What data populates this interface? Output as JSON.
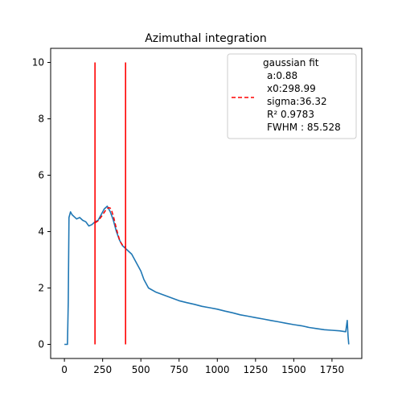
{
  "chart_data": {
    "type": "line",
    "title": "Azimuthal integration",
    "xlabel": "",
    "ylabel": "",
    "xlim": [
      -90,
      1945
    ],
    "ylim": [
      -0.5,
      10.5
    ],
    "xticks": [
      0,
      250,
      500,
      750,
      1000,
      1250,
      1500,
      1750
    ],
    "yticks": [
      0,
      2,
      4,
      6,
      8,
      10
    ],
    "grid": false,
    "legend_position": "top-right",
    "legend": {
      "title": "gaussian fit",
      "lines": [
        "a:0.88",
        "x0:298.99",
        "sigma:36.32",
        "R² 0.9783",
        "FWHM : 85.528"
      ]
    },
    "colors": {
      "data": "#1f77b4",
      "fit": "#ff0000",
      "markers": "#ff0000"
    },
    "series": [
      {
        "name": "",
        "style": "solid",
        "x": [
          0,
          20,
          25,
          30,
          40,
          50,
          60,
          80,
          100,
          120,
          140,
          160,
          180,
          200,
          220,
          240,
          260,
          280,
          300,
          320,
          340,
          360,
          380,
          400,
          420,
          440,
          460,
          480,
          500,
          520,
          550,
          600,
          650,
          700,
          750,
          800,
          850,
          900,
          950,
          1000,
          1050,
          1100,
          1150,
          1200,
          1250,
          1300,
          1350,
          1400,
          1450,
          1500,
          1550,
          1600,
          1650,
          1700,
          1750,
          1800,
          1840,
          1850,
          1855,
          1860
        ],
        "y": [
          0,
          0,
          1.5,
          4.5,
          4.7,
          4.6,
          4.55,
          4.45,
          4.5,
          4.4,
          4.35,
          4.2,
          4.25,
          4.35,
          4.4,
          4.6,
          4.8,
          4.9,
          4.7,
          4.4,
          4.0,
          3.7,
          3.5,
          3.4,
          3.3,
          3.2,
          3.0,
          2.8,
          2.6,
          2.3,
          2.0,
          1.85,
          1.75,
          1.65,
          1.55,
          1.48,
          1.42,
          1.35,
          1.3,
          1.25,
          1.18,
          1.12,
          1.05,
          1.0,
          0.95,
          0.9,
          0.85,
          0.8,
          0.75,
          0.7,
          0.66,
          0.6,
          0.56,
          0.52,
          0.5,
          0.48,
          0.45,
          0.85,
          0.3,
          0
        ]
      },
      {
        "name": "gaussian fit",
        "style": "dashed",
        "x": [
          200,
          210,
          220,
          230,
          240,
          250,
          260,
          270,
          280,
          290,
          300,
          310,
          320,
          330,
          340,
          350,
          360,
          370,
          380,
          390,
          400
        ],
        "y": [
          4.3,
          4.35,
          4.38,
          4.45,
          4.52,
          4.6,
          4.68,
          4.76,
          4.82,
          4.85,
          4.83,
          4.72,
          4.55,
          4.33,
          4.1,
          3.9,
          3.72,
          3.6,
          3.52,
          3.47,
          3.45
        ]
      }
    ],
    "vlines": [
      {
        "x": 200,
        "ymin": 0,
        "ymax": 10
      },
      {
        "x": 400,
        "ymin": 0,
        "ymax": 10
      }
    ]
  }
}
